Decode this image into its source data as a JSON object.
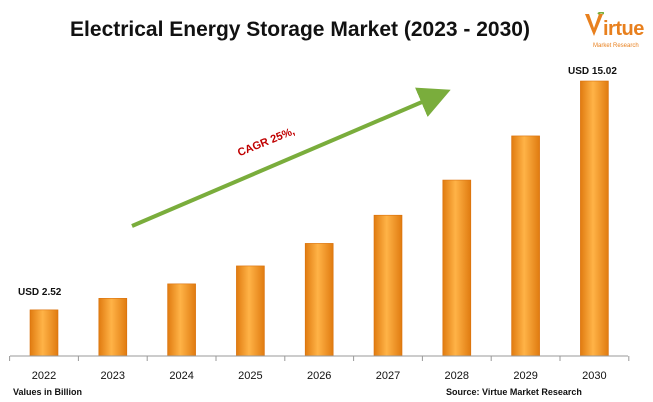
{
  "chart_data": {
    "type": "bar",
    "title": "Electrical Energy Storage Market (2023 - 2030)",
    "categories": [
      "2022",
      "2023",
      "2024",
      "2025",
      "2026",
      "2027",
      "2028",
      "2029",
      "2030"
    ],
    "values": [
      2.52,
      3.15,
      3.94,
      4.92,
      6.15,
      7.69,
      9.61,
      12.02,
      15.02
    ],
    "data_labels": {
      "first": "USD 2.52",
      "last": "USD 15.02"
    },
    "annotation": "CAGR 25%,",
    "ylim": [
      0,
      16
    ],
    "grid": false,
    "xlabel": "",
    "ylabel": ""
  },
  "footer": {
    "units_note": "Values in Billion",
    "source": "Source: Virtue Market Research"
  },
  "logo": {
    "word": "irtue",
    "subtitle": "Market Research"
  },
  "colors": {
    "bar_mid": "#f7a035",
    "bar_edge": "#e07b10",
    "arrow": "#7aad3c",
    "brand": "#e8801e"
  }
}
